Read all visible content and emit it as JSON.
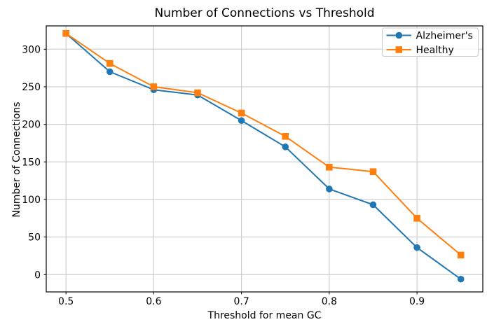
{
  "chart_data": {
    "type": "line",
    "title": "Number of Connections vs Threshold",
    "xlabel": "Threshold for mean GC",
    "ylabel": "Number of Connections",
    "x": [
      0.5,
      0.55,
      0.6,
      0.65,
      0.7,
      0.75,
      0.8,
      0.85,
      0.9,
      0.95
    ],
    "series": [
      {
        "name": "Alzheimer's",
        "color": "#1f77b4",
        "marker": "circle",
        "values": [
          321,
          270,
          246,
          239,
          205,
          170,
          114,
          93,
          36,
          -6
        ]
      },
      {
        "name": "Healthy",
        "color": "#ff7f0e",
        "marker": "square",
        "values": [
          321,
          281,
          250,
          242,
          215,
          184,
          143,
          137,
          75,
          26
        ]
      }
    ],
    "xticks": [
      0.5,
      0.6,
      0.7,
      0.8,
      0.9
    ],
    "yticks": [
      0,
      50,
      100,
      150,
      200,
      250,
      300
    ],
    "xlim": [
      0.4775,
      0.975
    ],
    "ylim": [
      -23,
      331
    ],
    "grid": true,
    "grid_color": "#c6c6c6",
    "spine_color": "#000000",
    "legend_position": "upper right",
    "legend_border_color": "#cccccc",
    "background": "#ffffff"
  }
}
